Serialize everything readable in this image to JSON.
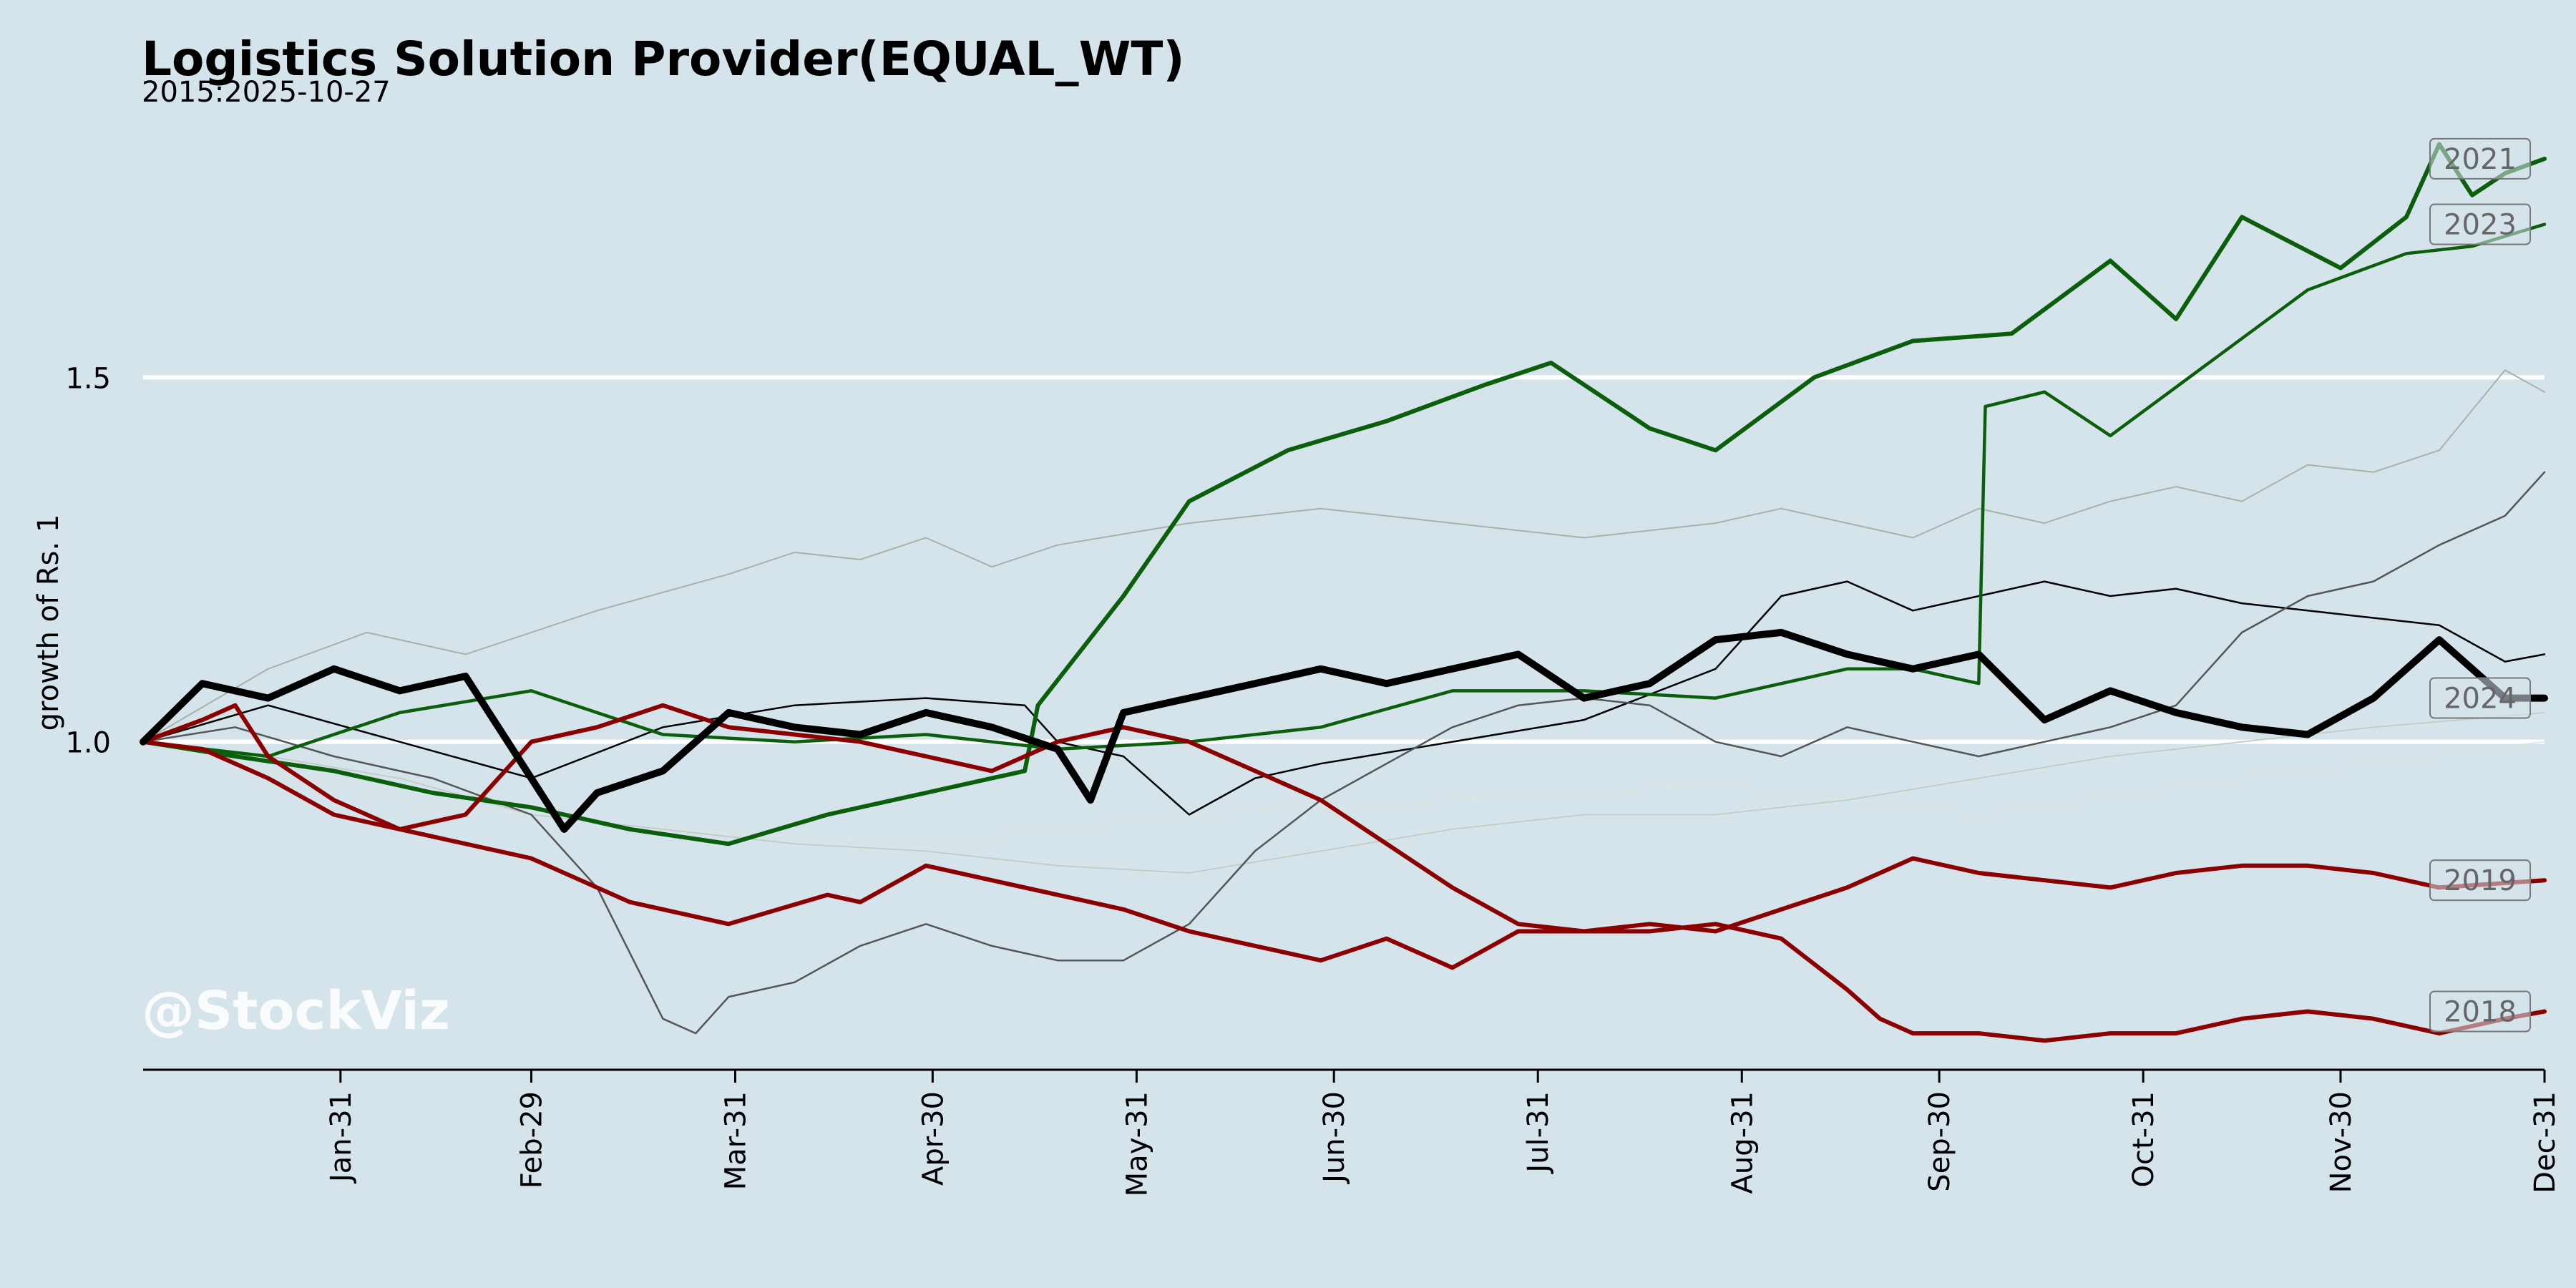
{
  "title": "Logistics Solution Provider(EQUAL_WT)",
  "subtitle": "2015:2025-10-27",
  "watermark": "@StockViz",
  "colors": {
    "background": "#d5e4eb",
    "gridline": "#ffffff",
    "green": "#0b5e0b",
    "red": "#8b0000",
    "black": "#000000",
    "gray": "#555555"
  },
  "chart_data": {
    "type": "line",
    "title": "Logistics Solution Provider(EQUAL_WT)",
    "subtitle": "2015:2025-10-27",
    "xlabel": "",
    "ylabel": "growth of Rs. 1",
    "x_ticks": [
      "Jan-31",
      "Feb-29",
      "Mar-31",
      "Apr-30",
      "May-31",
      "Jun-30",
      "Jul-31",
      "Aug-31",
      "Sep-30",
      "Oct-31",
      "Nov-30",
      "Dec-31"
    ],
    "x_tick_days": [
      31,
      60,
      91,
      121,
      152,
      182,
      213,
      244,
      274,
      305,
      335,
      366
    ],
    "xlim": [
      1,
      366
    ],
    "y_ticks": [
      1.0,
      1.5
    ],
    "ylim": [
      0.55,
      1.9
    ],
    "grid": "horizontal at y ticks",
    "series": [
      {
        "name": "2021",
        "label_shown": true,
        "color": "#0b5e0b",
        "width": 6,
        "x": [
          1,
          15,
          30,
          45,
          60,
          75,
          90,
          105,
          120,
          135,
          137,
          150,
          160,
          175,
          190,
          205,
          215,
          230,
          240,
          255,
          270,
          285,
          300,
          310,
          320,
          335,
          345,
          350,
          355,
          360,
          366
        ],
        "y": [
          1.0,
          0.98,
          0.96,
          0.93,
          0.91,
          0.88,
          0.86,
          0.9,
          0.93,
          0.96,
          1.05,
          1.2,
          1.33,
          1.4,
          1.44,
          1.49,
          1.52,
          1.43,
          1.4,
          1.5,
          1.55,
          1.56,
          1.66,
          1.58,
          1.72,
          1.65,
          1.72,
          1.82,
          1.75,
          1.78,
          1.8
        ]
      },
      {
        "name": "2023",
        "label_shown": true,
        "color": "#0b5e0b",
        "width": 4.5,
        "x": [
          1,
          20,
          40,
          60,
          80,
          100,
          120,
          140,
          160,
          180,
          200,
          220,
          240,
          260,
          270,
          280,
          281,
          290,
          300,
          315,
          330,
          345,
          355,
          366
        ],
        "y": [
          1.0,
          0.98,
          1.04,
          1.07,
          1.01,
          1.0,
          1.01,
          0.99,
          1.0,
          1.02,
          1.07,
          1.07,
          1.06,
          1.1,
          1.1,
          1.08,
          1.46,
          1.48,
          1.42,
          1.52,
          1.62,
          1.67,
          1.68,
          1.71
        ]
      },
      {
        "name": "2024",
        "label_shown": true,
        "color": "#000000",
        "width": 10,
        "x": [
          1,
          10,
          20,
          30,
          40,
          50,
          55,
          65,
          70,
          80,
          90,
          100,
          110,
          120,
          130,
          140,
          145,
          150,
          160,
          170,
          180,
          190,
          200,
          210,
          220,
          230,
          240,
          250,
          260,
          270,
          280,
          290,
          300,
          310,
          320,
          330,
          340,
          350,
          355,
          360,
          366
        ],
        "y": [
          1.0,
          1.08,
          1.06,
          1.1,
          1.07,
          1.09,
          1.02,
          0.88,
          0.93,
          0.96,
          1.04,
          1.02,
          1.01,
          1.04,
          1.02,
          0.99,
          0.92,
          1.04,
          1.06,
          1.08,
          1.1,
          1.08,
          1.1,
          1.12,
          1.06,
          1.08,
          1.14,
          1.15,
          1.12,
          1.1,
          1.12,
          1.03,
          1.07,
          1.04,
          1.02,
          1.01,
          1.06,
          1.14,
          1.1,
          1.06,
          1.06
        ]
      },
      {
        "name": "2019",
        "label_shown": true,
        "color": "#8b0000",
        "width": 6,
        "x": [
          1,
          10,
          20,
          30,
          45,
          60,
          75,
          90,
          105,
          110,
          120,
          130,
          140,
          150,
          160,
          170,
          180,
          190,
          200,
          210,
          220,
          230,
          240,
          250,
          260,
          270,
          280,
          290,
          300,
          310,
          320,
          330,
          340,
          350,
          366
        ],
        "y": [
          1.0,
          0.99,
          0.95,
          0.9,
          0.87,
          0.84,
          0.78,
          0.75,
          0.79,
          0.78,
          0.83,
          0.81,
          0.79,
          0.77,
          0.74,
          0.72,
          0.7,
          0.73,
          0.69,
          0.74,
          0.74,
          0.75,
          0.74,
          0.77,
          0.8,
          0.84,
          0.82,
          0.81,
          0.8,
          0.82,
          0.83,
          0.83,
          0.82,
          0.8,
          0.81
        ]
      },
      {
        "name": "2018",
        "label_shown": true,
        "color": "#8b0000",
        "width": 6,
        "x": [
          1,
          10,
          15,
          20,
          30,
          40,
          50,
          60,
          70,
          80,
          90,
          100,
          110,
          120,
          130,
          140,
          150,
          160,
          170,
          180,
          190,
          200,
          210,
          220,
          230,
          240,
          250,
          260,
          265,
          270,
          280,
          290,
          300,
          310,
          320,
          330,
          340,
          350,
          360,
          366
        ],
        "y": [
          1.0,
          1.03,
          1.05,
          0.98,
          0.92,
          0.88,
          0.9,
          1.0,
          1.02,
          1.05,
          1.02,
          1.01,
          1.0,
          0.98,
          0.96,
          1.0,
          1.02,
          1.0,
          0.96,
          0.92,
          0.86,
          0.8,
          0.75,
          0.74,
          0.74,
          0.75,
          0.73,
          0.66,
          0.62,
          0.6,
          0.6,
          0.59,
          0.6,
          0.6,
          0.62,
          0.63,
          0.62,
          0.6,
          0.62,
          0.63
        ]
      },
      {
        "name": "",
        "color": "#000000",
        "width": 2.5,
        "x": [
          1,
          20,
          40,
          60,
          80,
          100,
          120,
          135,
          140,
          150,
          160,
          170,
          180,
          200,
          220,
          240,
          250,
          260,
          265,
          270,
          280,
          290,
          300,
          310,
          320,
          330,
          340,
          350,
          360,
          366
        ],
        "y": [
          1.0,
          1.05,
          1.0,
          0.95,
          1.02,
          1.05,
          1.06,
          1.05,
          1.0,
          0.98,
          0.9,
          0.95,
          0.97,
          1.0,
          1.03,
          1.1,
          1.2,
          1.22,
          1.2,
          1.18,
          1.2,
          1.22,
          1.2,
          1.21,
          1.19,
          1.18,
          1.17,
          1.16,
          1.11,
          1.12
        ]
      },
      {
        "name": "",
        "color": "#555555",
        "width": 2.5,
        "x": [
          1,
          15,
          30,
          45,
          60,
          70,
          80,
          85,
          90,
          100,
          110,
          120,
          130,
          140,
          150,
          160,
          170,
          180,
          190,
          200,
          210,
          220,
          230,
          240,
          250,
          260,
          270,
          280,
          290,
          300,
          310,
          320,
          330,
          340,
          350,
          360,
          366
        ],
        "y": [
          1.0,
          1.02,
          0.98,
          0.95,
          0.9,
          0.8,
          0.62,
          0.6,
          0.65,
          0.67,
          0.72,
          0.75,
          0.72,
          0.7,
          0.7,
          0.75,
          0.85,
          0.92,
          0.97,
          1.02,
          1.05,
          1.06,
          1.05,
          1.0,
          0.98,
          1.02,
          1.0,
          0.98,
          1.0,
          1.02,
          1.05,
          1.15,
          1.2,
          1.22,
          1.27,
          1.31,
          1.37
        ]
      },
      {
        "name": "",
        "color": "#a8b2a8",
        "width": 2,
        "x": [
          1,
          20,
          35,
          50,
          70,
          90,
          100,
          110,
          120,
          130,
          140,
          160,
          180,
          200,
          220,
          240,
          250,
          260,
          270,
          280,
          290,
          300,
          310,
          320,
          330,
          340,
          350,
          360,
          366
        ],
        "y": [
          1.0,
          1.1,
          1.15,
          1.12,
          1.18,
          1.23,
          1.26,
          1.25,
          1.28,
          1.24,
          1.27,
          1.3,
          1.32,
          1.3,
          1.28,
          1.3,
          1.32,
          1.3,
          1.28,
          1.32,
          1.3,
          1.33,
          1.35,
          1.33,
          1.38,
          1.37,
          1.4,
          1.51,
          1.48
        ]
      },
      {
        "name": "",
        "color": "#c3ccc3",
        "width": 1.8,
        "x": [
          1,
          20,
          40,
          60,
          80,
          100,
          120,
          140,
          160,
          180,
          200,
          220,
          240,
          260,
          280,
          300,
          320,
          340,
          366
        ],
        "y": [
          1.0,
          0.98,
          0.95,
          0.9,
          0.88,
          0.86,
          0.85,
          0.83,
          0.82,
          0.85,
          0.88,
          0.9,
          0.9,
          0.92,
          0.95,
          0.98,
          1.0,
          1.02,
          1.04
        ]
      },
      {
        "name": "",
        "color": "#dfe5df",
        "width": 1.6,
        "x": [
          1,
          40,
          80,
          120,
          160,
          200,
          240,
          280,
          320,
          366
        ],
        "y": [
          1.0,
          0.92,
          0.88,
          0.86,
          0.9,
          0.92,
          0.94,
          0.9,
          0.95,
          1.0
        ]
      }
    ]
  }
}
